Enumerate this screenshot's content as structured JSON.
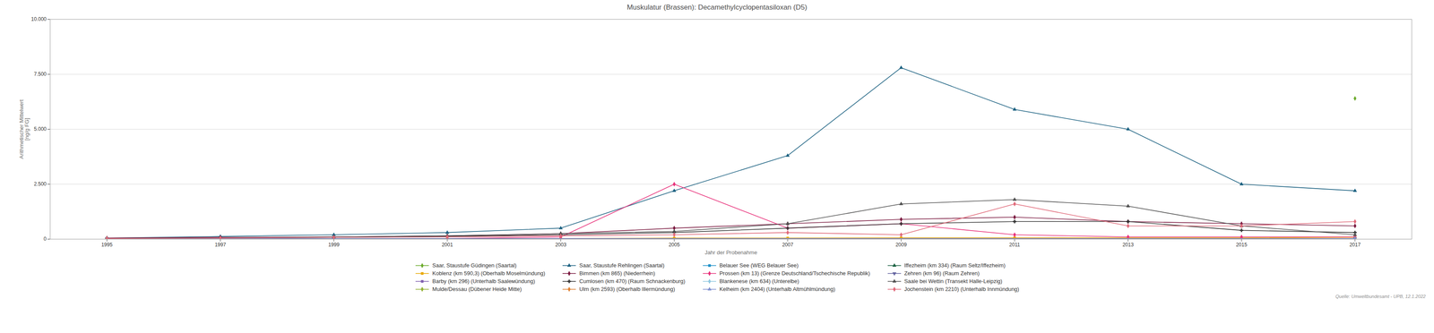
{
  "chart_data": {
    "type": "line",
    "title": "Muskulatur (Brassen): Decamethylcyclopentasiloxan (D5)",
    "xlabel": "Jahr der Probenahme",
    "ylabel": "Arithmetischer Mittelwert\n[ng/g FG]",
    "annotations": [
      "Quelle: Umweltbundesamt - UPB, 12.1.2022"
    ],
    "xlim": [
      1994,
      2018
    ],
    "xticks": [
      1995,
      1997,
      1999,
      2001,
      2003,
      2005,
      2007,
      2009,
      2011,
      2013,
      2015,
      2017
    ],
    "ylim": [
      0,
      10000
    ],
    "yticks": [
      0,
      {
        "value": 2500,
        "label": "2.500"
      },
      {
        "value": 5000,
        "label": "5.000"
      },
      {
        "value": 7500,
        "label": "7.500"
      },
      {
        "value": 10000,
        "label": "10.000"
      }
    ],
    "grid": true,
    "legend": "bottom",
    "series": [
      {
        "name": "Saar, Staustufe Güdingen (Saartal)",
        "color": "#6aaa2a",
        "marker": "diamond",
        "x": [
          2017
        ],
        "values": [
          6400
        ]
      },
      {
        "name": "Saar, Staustufe Rehlingen (Saartal)",
        "color": "#1a6080",
        "marker": "triangle",
        "x": [
          1995,
          1997,
          1999,
          2001,
          2003,
          2005,
          2007,
          2009,
          2011,
          2013,
          2015,
          2017
        ],
        "values": [
          50,
          120,
          200,
          300,
          500,
          2200,
          3800,
          7800,
          5900,
          5000,
          2500,
          2200
        ]
      },
      {
        "name": "Belauer See (WEG Belauer See)",
        "color": "#1e90c8",
        "marker": "square",
        "x": [
          1995,
          2011
        ],
        "values": [
          30,
          30
        ]
      },
      {
        "name": "Iffezheim (km 334) (Raum Seltz/Iffezheim)",
        "color": "#1a6040",
        "marker": "triangle",
        "x": [
          1995,
          2017
        ],
        "values": [
          30,
          30
        ]
      },
      {
        "name": "Koblenz (km 590,3) (Oberhalb Moselmündung)",
        "color": "#e8a800",
        "marker": "square",
        "x": [
          1995,
          1997,
          1999,
          2001,
          2003,
          2005,
          2007,
          2009,
          2011,
          2013,
          2015,
          2017
        ],
        "values": [
          30,
          30,
          30,
          30,
          30,
          50,
          50,
          60,
          60,
          60,
          60,
          80
        ]
      },
      {
        "name": "Bimmen (km 865) (Niederrhein)",
        "color": "#7b1a40",
        "marker": "diamond",
        "x": [
          1995,
          1997,
          1999,
          2001,
          2003,
          2005,
          2007,
          2009,
          2011,
          2013,
          2015,
          2017
        ],
        "values": [
          50,
          80,
          100,
          150,
          250,
          500,
          700,
          900,
          1000,
          800,
          700,
          600
        ]
      },
      {
        "name": "Prossen (km 13) (Grenze Deutschland/Tschechische Republik)",
        "color": "#e8307a",
        "marker": "diamond",
        "x": [
          1995,
          1997,
          1999,
          2001,
          2003,
          2005,
          2007,
          2009,
          2011,
          2013,
          2015,
          2017
        ],
        "values": [
          30,
          30,
          30,
          30,
          100,
          2500,
          500,
          700,
          200,
          100,
          100,
          100
        ]
      },
      {
        "name": "Zehren (km 96) (Raum Zehren)",
        "color": "#6464a0",
        "marker": "triangle-down",
        "x": [
          1995,
          2017
        ],
        "values": [
          30,
          30
        ]
      },
      {
        "name": "Barby (km 296) (Unterhalb Saalемündung)",
        "color": "#8060b0",
        "marker": "square",
        "x": [
          1995,
          2017
        ],
        "values": [
          30,
          30
        ]
      },
      {
        "name": "Cumlosen (km 470) (Raum Schnackenburg)",
        "color": "#303030",
        "marker": "cross",
        "x": [
          1995,
          1997,
          1999,
          2001,
          2003,
          2005,
          2007,
          2009,
          2011,
          2013,
          2015,
          2017
        ],
        "values": [
          30,
          50,
          80,
          120,
          200,
          300,
          500,
          700,
          800,
          800,
          400,
          300
        ]
      },
      {
        "name": "Blankenese (km 634) (Unterelbe)",
        "color": "#90c8e0",
        "marker": "diamond",
        "x": [
          1995,
          2017
        ],
        "values": [
          30,
          30
        ]
      },
      {
        "name": "Saale bei Wettin (Transekt Halle-Leipzig)",
        "color": "#505050",
        "marker": "triangle",
        "x": [
          1995,
          1997,
          1999,
          2001,
          2003,
          2005,
          2007,
          2009,
          2011,
          2013,
          2015,
          2017
        ],
        "values": [
          30,
          50,
          100,
          150,
          250,
          350,
          700,
          1600,
          1800,
          1500,
          600,
          200
        ]
      },
      {
        "name": "Mulde/Dessau (Dübener Heide Mitte)",
        "color": "#90b030",
        "marker": "diamond",
        "x": [
          1995,
          2017
        ],
        "values": [
          30,
          30
        ]
      },
      {
        "name": "Ulm (km 2593) (Oberhalb Illermündung)",
        "color": "#e08030",
        "marker": "diamond",
        "x": [
          1995,
          2017
        ],
        "values": [
          30,
          30
        ]
      },
      {
        "name": "Kelheim (km 2404) (Unterhalb Altmühlmündung)",
        "color": "#8090d0",
        "marker": "triangle",
        "x": [
          1995,
          2017
        ],
        "values": [
          30,
          30
        ]
      },
      {
        "name": "Jochenstein (km 2210) (Unterhalb Innmündung)",
        "color": "#e06878",
        "marker": "diamond",
        "x": [
          1995,
          1997,
          1999,
          2001,
          2003,
          2005,
          2007,
          2009,
          2011,
          2013,
          2015,
          2017
        ],
        "values": [
          30,
          50,
          80,
          100,
          150,
          200,
          300,
          200,
          1600,
          600,
          600,
          800
        ]
      }
    ]
  }
}
